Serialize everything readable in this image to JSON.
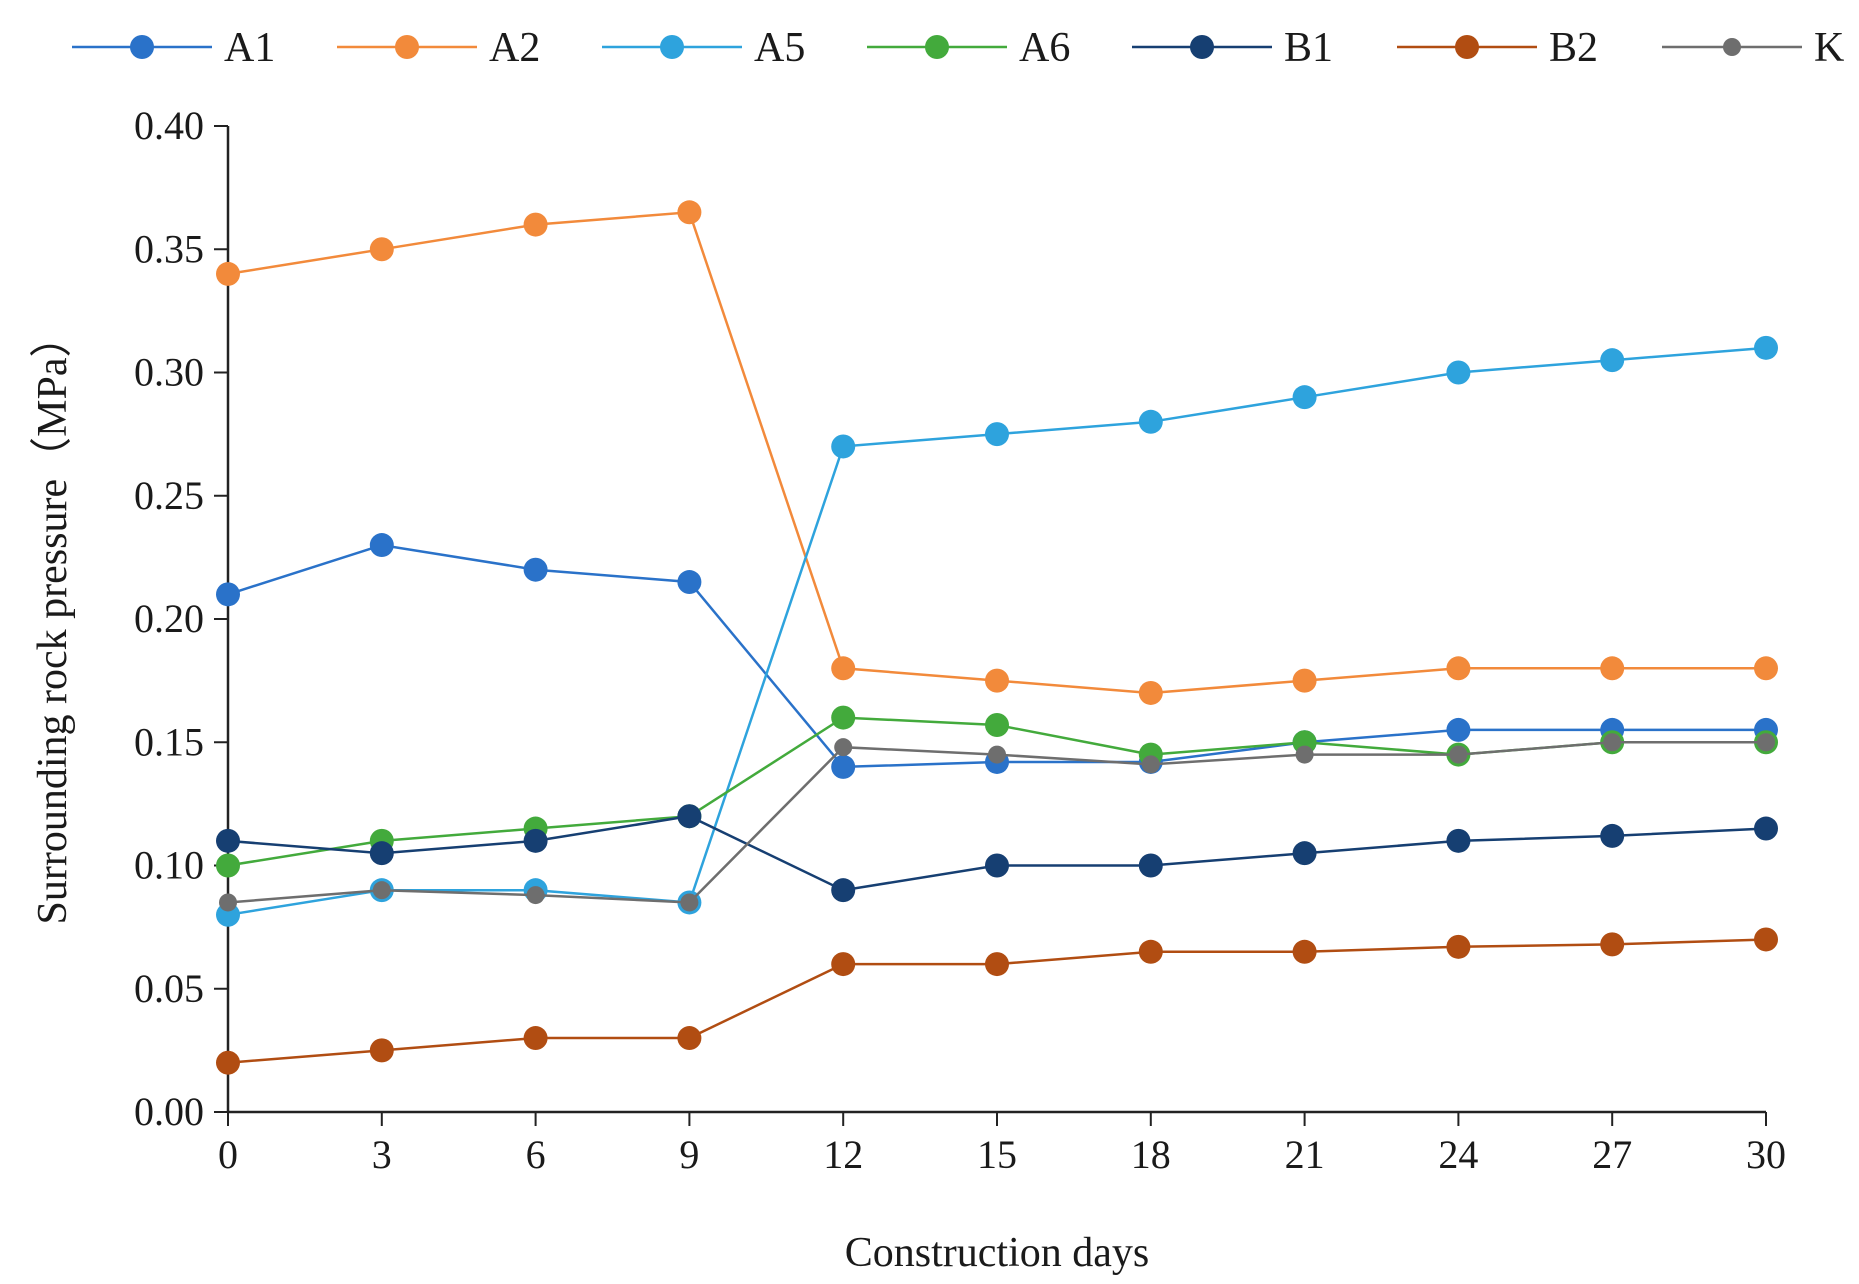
{
  "chart_data": {
    "type": "line",
    "title": "",
    "xlabel": "Construction days",
    "ylabel": "Surrounding rock pressure（MPa）",
    "x": [
      0,
      3,
      6,
      9,
      12,
      15,
      18,
      21,
      24,
      27,
      30
    ],
    "x_tick_labels": [
      "0",
      "3",
      "6",
      "9",
      "12",
      "15",
      "18",
      "21",
      "24",
      "27",
      "30"
    ],
    "y_tick_labels": [
      "0.00",
      "0.05",
      "0.10",
      "0.15",
      "0.20",
      "0.25",
      "0.30",
      "0.35",
      "0.40"
    ],
    "y_ticks": [
      0,
      0.05,
      0.1,
      0.15,
      0.2,
      0.25,
      0.3,
      0.35,
      0.4
    ],
    "ylim": [
      0,
      0.4
    ],
    "xlim": [
      0,
      30
    ],
    "grid": false,
    "legend_position": "top",
    "series": [
      {
        "name": "A1",
        "color": "#2a72c9",
        "values": [
          0.21,
          0.23,
          0.22,
          0.215,
          0.14,
          0.142,
          0.142,
          0.15,
          0.155,
          0.155,
          0.155
        ]
      },
      {
        "name": "A2",
        "color": "#f28a3b",
        "values": [
          0.34,
          0.35,
          0.36,
          0.365,
          0.18,
          0.175,
          0.17,
          0.175,
          0.18,
          0.18,
          0.18
        ]
      },
      {
        "name": "A5",
        "color": "#2ea3dd",
        "values": [
          0.08,
          0.09,
          0.09,
          0.085,
          0.27,
          0.275,
          0.28,
          0.29,
          0.3,
          0.305,
          0.31
        ]
      },
      {
        "name": "A6",
        "color": "#43aa3c",
        "values": [
          0.1,
          0.11,
          0.115,
          0.12,
          0.16,
          0.157,
          0.145,
          0.15,
          0.145,
          0.15,
          0.15
        ]
      },
      {
        "name": "B1",
        "color": "#163f72",
        "values": [
          0.11,
          0.105,
          0.11,
          0.12,
          0.09,
          0.1,
          0.1,
          0.105,
          0.11,
          0.112,
          0.115
        ]
      },
      {
        "name": "B2",
        "color": "#b14d12",
        "values": [
          0.02,
          0.025,
          0.03,
          0.03,
          0.06,
          0.06,
          0.065,
          0.065,
          0.067,
          0.068,
          0.07
        ]
      },
      {
        "name": "K",
        "color": "#6e6e6e",
        "values": [
          0.085,
          0.09,
          0.088,
          0.085,
          0.148,
          0.145,
          0.141,
          0.145,
          0.145,
          0.15,
          0.15
        ]
      }
    ]
  }
}
